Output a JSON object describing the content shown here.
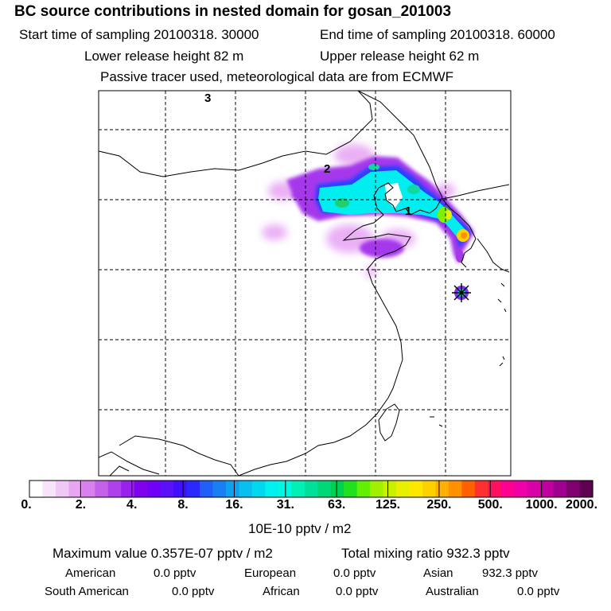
{
  "header": {
    "title": "BC  source contributions in nested domain for gosan_201003",
    "start_time": "Start time of sampling 20100318. 30000",
    "end_time": "End time of sampling 20100318. 60000",
    "lower_height": "Lower release height   82 m",
    "upper_height": "Upper release height   62 m",
    "tracer_note": "Passive tracer used, meteorological data are from ECMWF"
  },
  "map": {
    "labels": [
      "3",
      "2",
      "1"
    ],
    "receptor_marker": "star-cross",
    "land_outline_color": "#000000",
    "grid_color": "#000000"
  },
  "colorbar": {
    "ticks": [
      "0.",
      "2.",
      "4.",
      "8.",
      "16.",
      "31.",
      "63.",
      "125.",
      "250.",
      "500.",
      "1000.",
      "2000."
    ],
    "colors": [
      "#ffffff",
      "#f8e4fa",
      "#f0c8f6",
      "#e8a6f2",
      "#d880ee",
      "#c460ea",
      "#b040ea",
      "#9a20ec",
      "#8000f0",
      "#7000f6",
      "#5a10fa",
      "#4010fc",
      "#2828ff",
      "#2060f8",
      "#1880f4",
      "#10a0f0",
      "#08c0f0",
      "#00d8f0",
      "#00f0f0",
      "#00f8e0",
      "#00f0b8",
      "#00e098",
      "#00d878",
      "#00d050",
      "#20e020",
      "#60f000",
      "#a0f000",
      "#c8f000",
      "#e8f000",
      "#ffe800",
      "#ffd000",
      "#ffb000",
      "#ff9000",
      "#ff6000",
      "#ff3030",
      "#ff1060",
      "#ff0090",
      "#f000a8",
      "#d800a8",
      "#c000a0",
      "#a00090",
      "#800070",
      "#600050"
    ],
    "unit": "10E-10 pptv / m2"
  },
  "summary": {
    "maximum": "Maximum value  0.357E-07 pptv / m2",
    "total": "Total mixing ratio      932.3 pptv",
    "regions": [
      {
        "name": "American",
        "value": "0.0 pptv"
      },
      {
        "name": "European",
        "value": "0.0 pptv"
      },
      {
        "name": "Asian",
        "value": "932.3 pptv"
      },
      {
        "name": "South American",
        "value": "0.0 pptv"
      },
      {
        "name": "African",
        "value": "0.0 pptv"
      },
      {
        "name": "Australian",
        "value": "0.0 pptv"
      }
    ]
  }
}
